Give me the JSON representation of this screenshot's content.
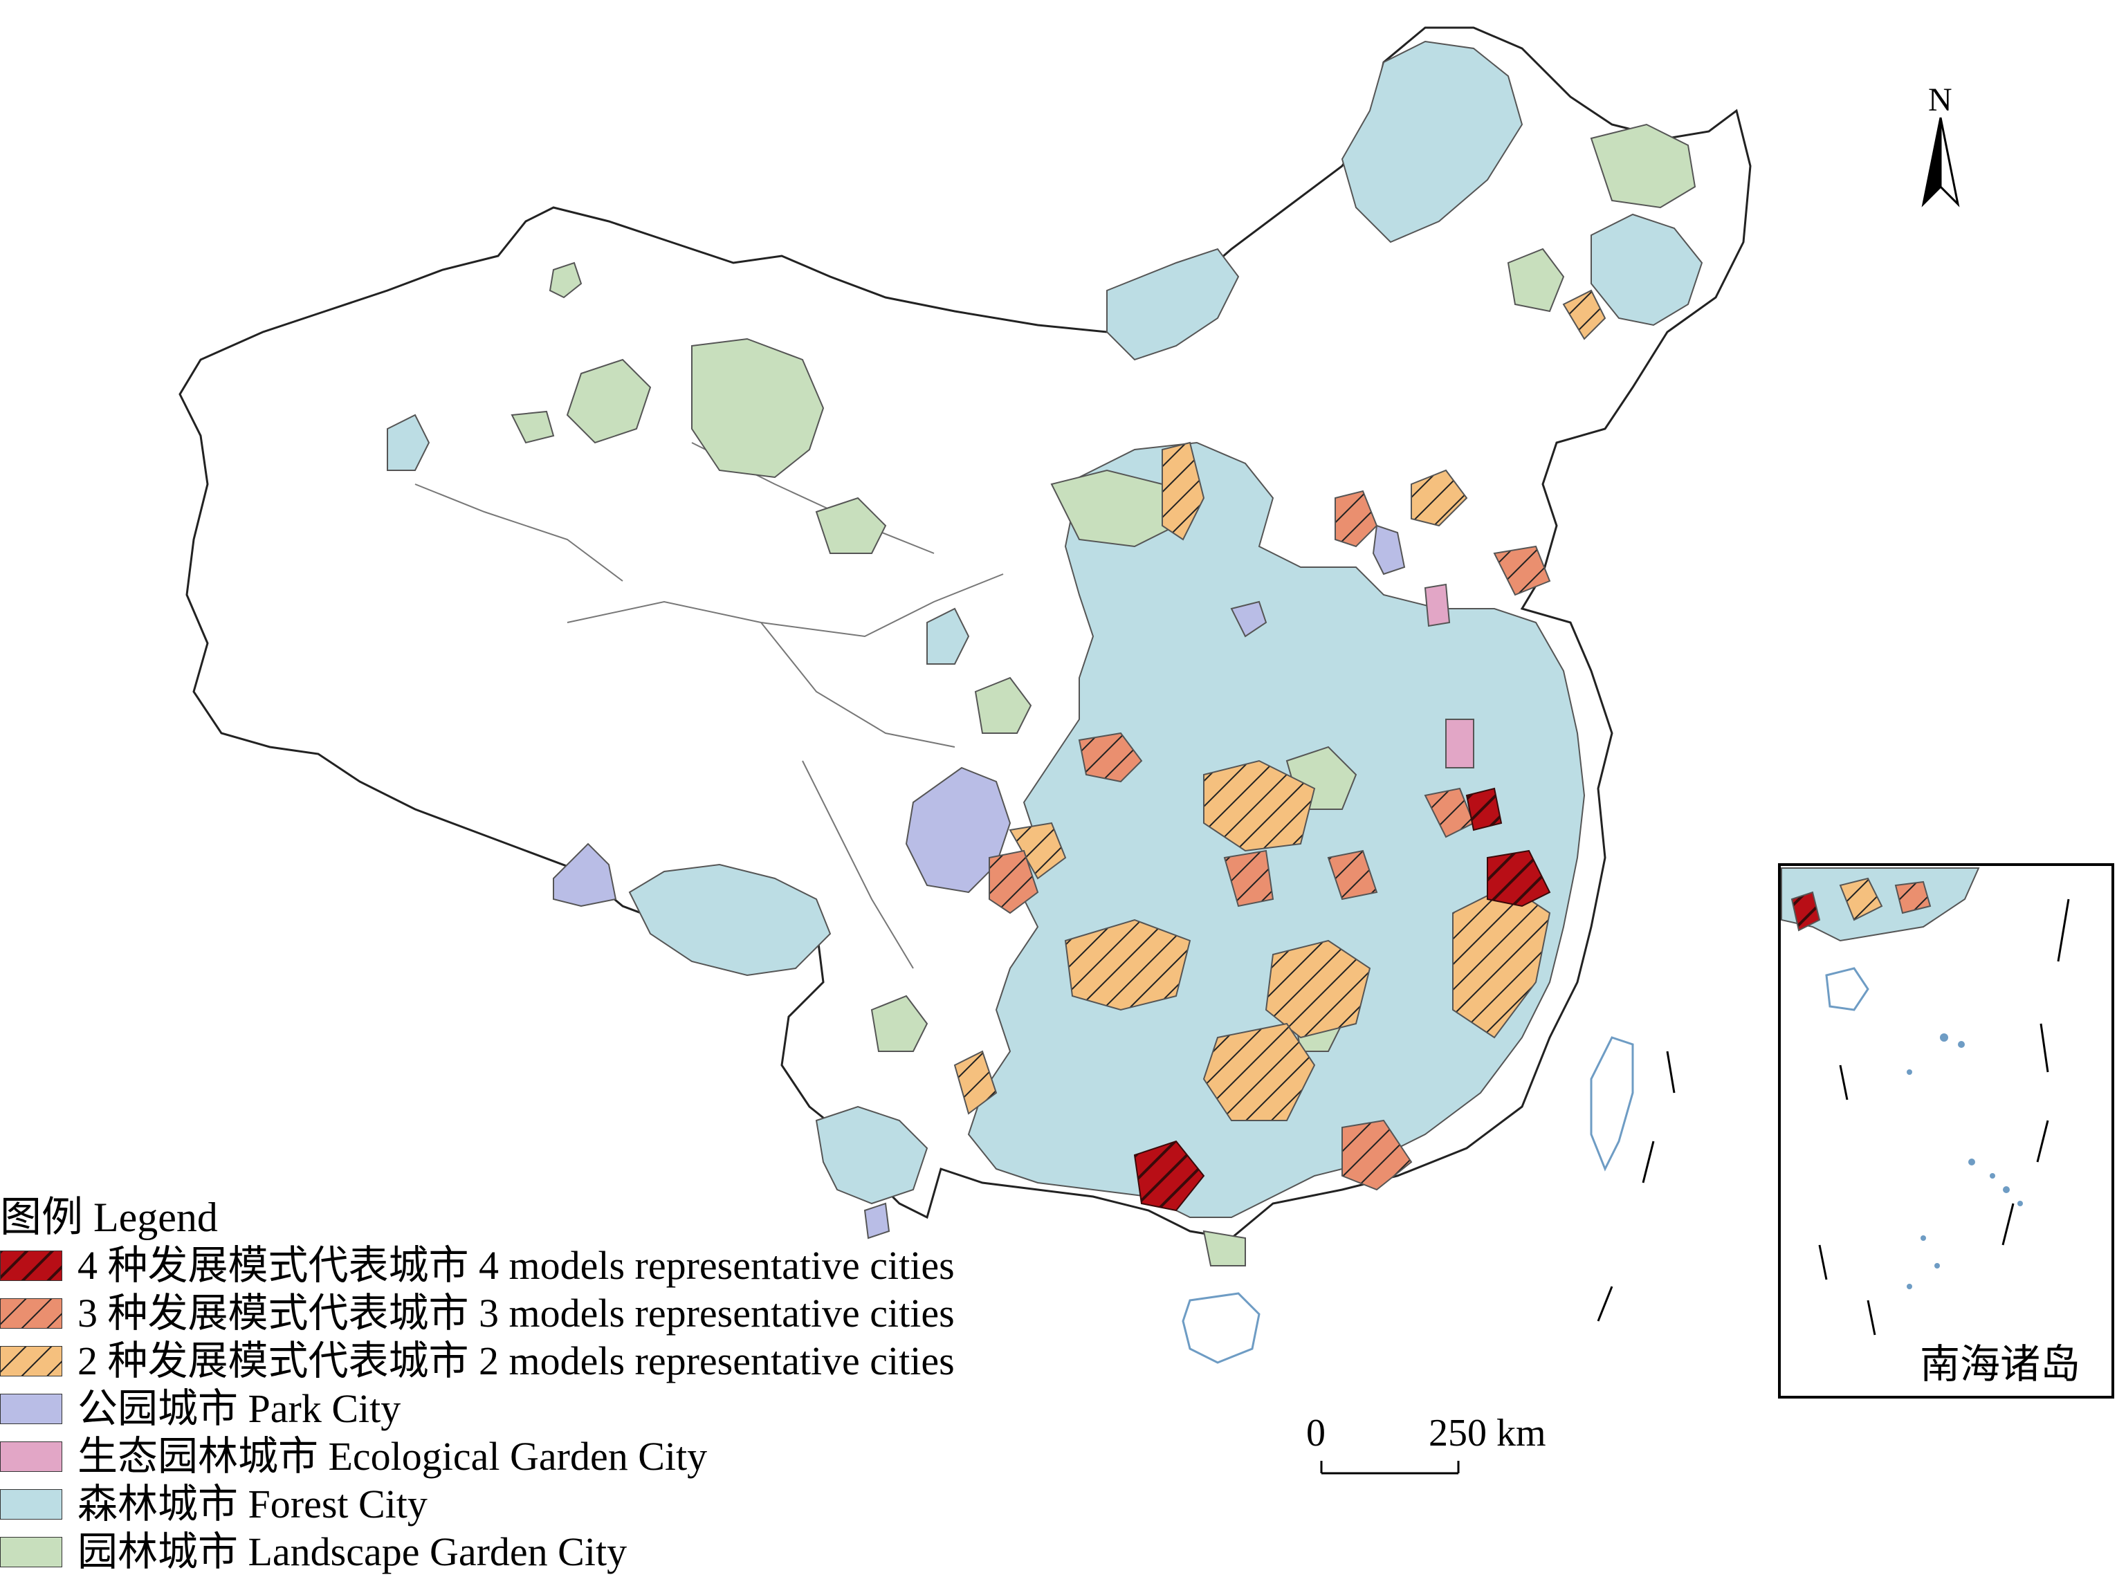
{
  "colors": {
    "four_models": "#b80e16",
    "three_models": "#ea8f6f",
    "two_models": "#f5c07e",
    "park_city": "#b9bde6",
    "ecological_garden_city": "#e2a6c6",
    "forest_city": "#bcdde4",
    "landscape_garden_city": "#c8dfbd",
    "boundary": "#333333",
    "hatch": "#222222"
  },
  "map": {
    "north_label": "N",
    "scale": {
      "start_label": "0",
      "end_label": "250 km"
    },
    "inset_title": "南海诸岛"
  },
  "legend": {
    "title": "图例 Legend",
    "items": [
      {
        "key": "four_models",
        "label": "4 种发展模式代表城市 4 models representative cities",
        "hatched": true
      },
      {
        "key": "three_models",
        "label": "3 种发展模式代表城市 3 models representative cities",
        "hatched": true
      },
      {
        "key": "two_models",
        "label": "2 种发展模式代表城市 2 models representative cities",
        "hatched": true
      },
      {
        "key": "park_city",
        "label": "公园城市 Park City",
        "hatched": false
      },
      {
        "key": "ecological_garden_city",
        "label": "生态园林城市 Ecological Garden City",
        "hatched": false
      },
      {
        "key": "forest_city",
        "label": "森林城市 Forest City",
        "hatched": false
      },
      {
        "key": "landscape_garden_city",
        "label": "园林城市 Landscape Garden City",
        "hatched": false
      }
    ]
  }
}
